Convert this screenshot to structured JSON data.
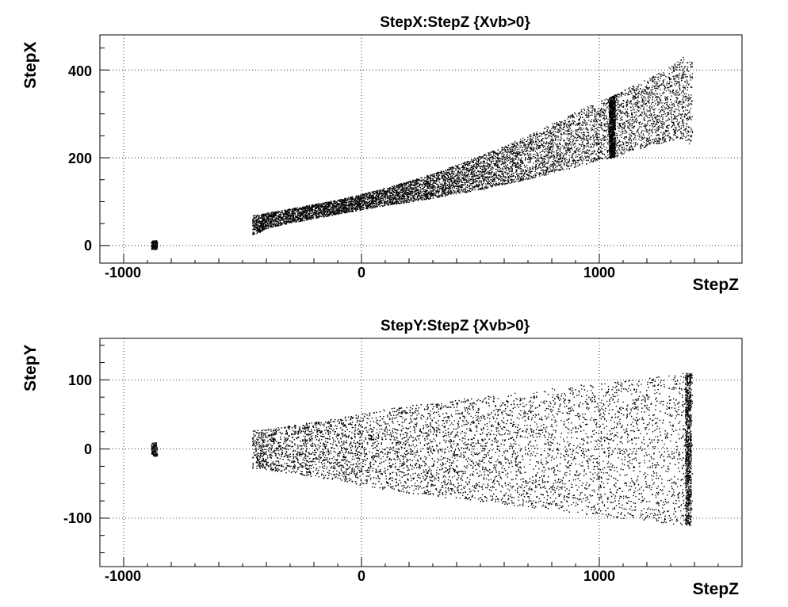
{
  "chart_data": [
    {
      "type": "scatter",
      "title": "StepX:StepZ {Xvb>0}",
      "xlabel": "StepZ",
      "ylabel": "StepX",
      "xlim": [
        -1100,
        1600
      ],
      "ylim": [
        -40,
        480
      ],
      "xticks": [
        -1000,
        0,
        1000
      ],
      "yticks": [
        0,
        200,
        400
      ],
      "xtick_labels": [
        "-1000",
        "0",
        "1000"
      ],
      "ytick_labels": [
        "0",
        "200",
        "400"
      ],
      "grid": true,
      "marker_color": "#000000",
      "series": [
        {
          "description_points": "dense band",
          "x": [
            -880,
            -865,
            -460,
            -430,
            -400,
            -300,
            -200,
            -100,
            0,
            100,
            200,
            300,
            400,
            500,
            600,
            700,
            800,
            900,
            1000,
            1050,
            1100,
            1200,
            1300,
            1350,
            1380
          ],
          "y_low": [
            -8,
            -8,
            25,
            30,
            40,
            52,
            62,
            72,
            82,
            92,
            100,
            108,
            118,
            128,
            140,
            152,
            165,
            180,
            195,
            200,
            210,
            225,
            240,
            245,
            230
          ],
          "y_high": [
            12,
            12,
            70,
            72,
            75,
            85,
            95,
            105,
            118,
            132,
            148,
            165,
            185,
            205,
            228,
            252,
            278,
            305,
            330,
            340,
            355,
            380,
            410,
            430,
            420
          ]
        }
      ]
    },
    {
      "type": "scatter",
      "title": "StepY:StepZ {Xvb>0}",
      "xlabel": "StepZ",
      "ylabel": "StepY",
      "xlim": [
        -1100,
        1600
      ],
      "ylim": [
        -170,
        160
      ],
      "xticks": [
        -1000,
        0,
        1000
      ],
      "yticks": [
        -100,
        0,
        100
      ],
      "xtick_labels": [
        "-1000",
        "0",
        "1000"
      ],
      "ytick_labels": [
        "-100",
        "0",
        "100"
      ],
      "grid": true,
      "marker_color": "#000000",
      "series": [
        {
          "x": [
            -880,
            -865,
            -460,
            -430,
            -400,
            -300,
            -200,
            -100,
            0,
            100,
            200,
            300,
            400,
            500,
            600,
            700,
            800,
            900,
            1000,
            1050,
            1100,
            1200,
            1300,
            1350,
            1380
          ],
          "y_low": [
            -10,
            -10,
            -28,
            -28,
            -30,
            -35,
            -40,
            -45,
            -52,
            -58,
            -63,
            -68,
            -72,
            -76,
            -80,
            -84,
            -88,
            -92,
            -96,
            -98,
            -100,
            -104,
            -108,
            -110,
            -110
          ],
          "y_high": [
            10,
            10,
            28,
            28,
            30,
            35,
            40,
            45,
            52,
            58,
            63,
            68,
            72,
            76,
            80,
            84,
            88,
            92,
            96,
            98,
            100,
            104,
            108,
            110,
            110
          ]
        }
      ]
    }
  ]
}
